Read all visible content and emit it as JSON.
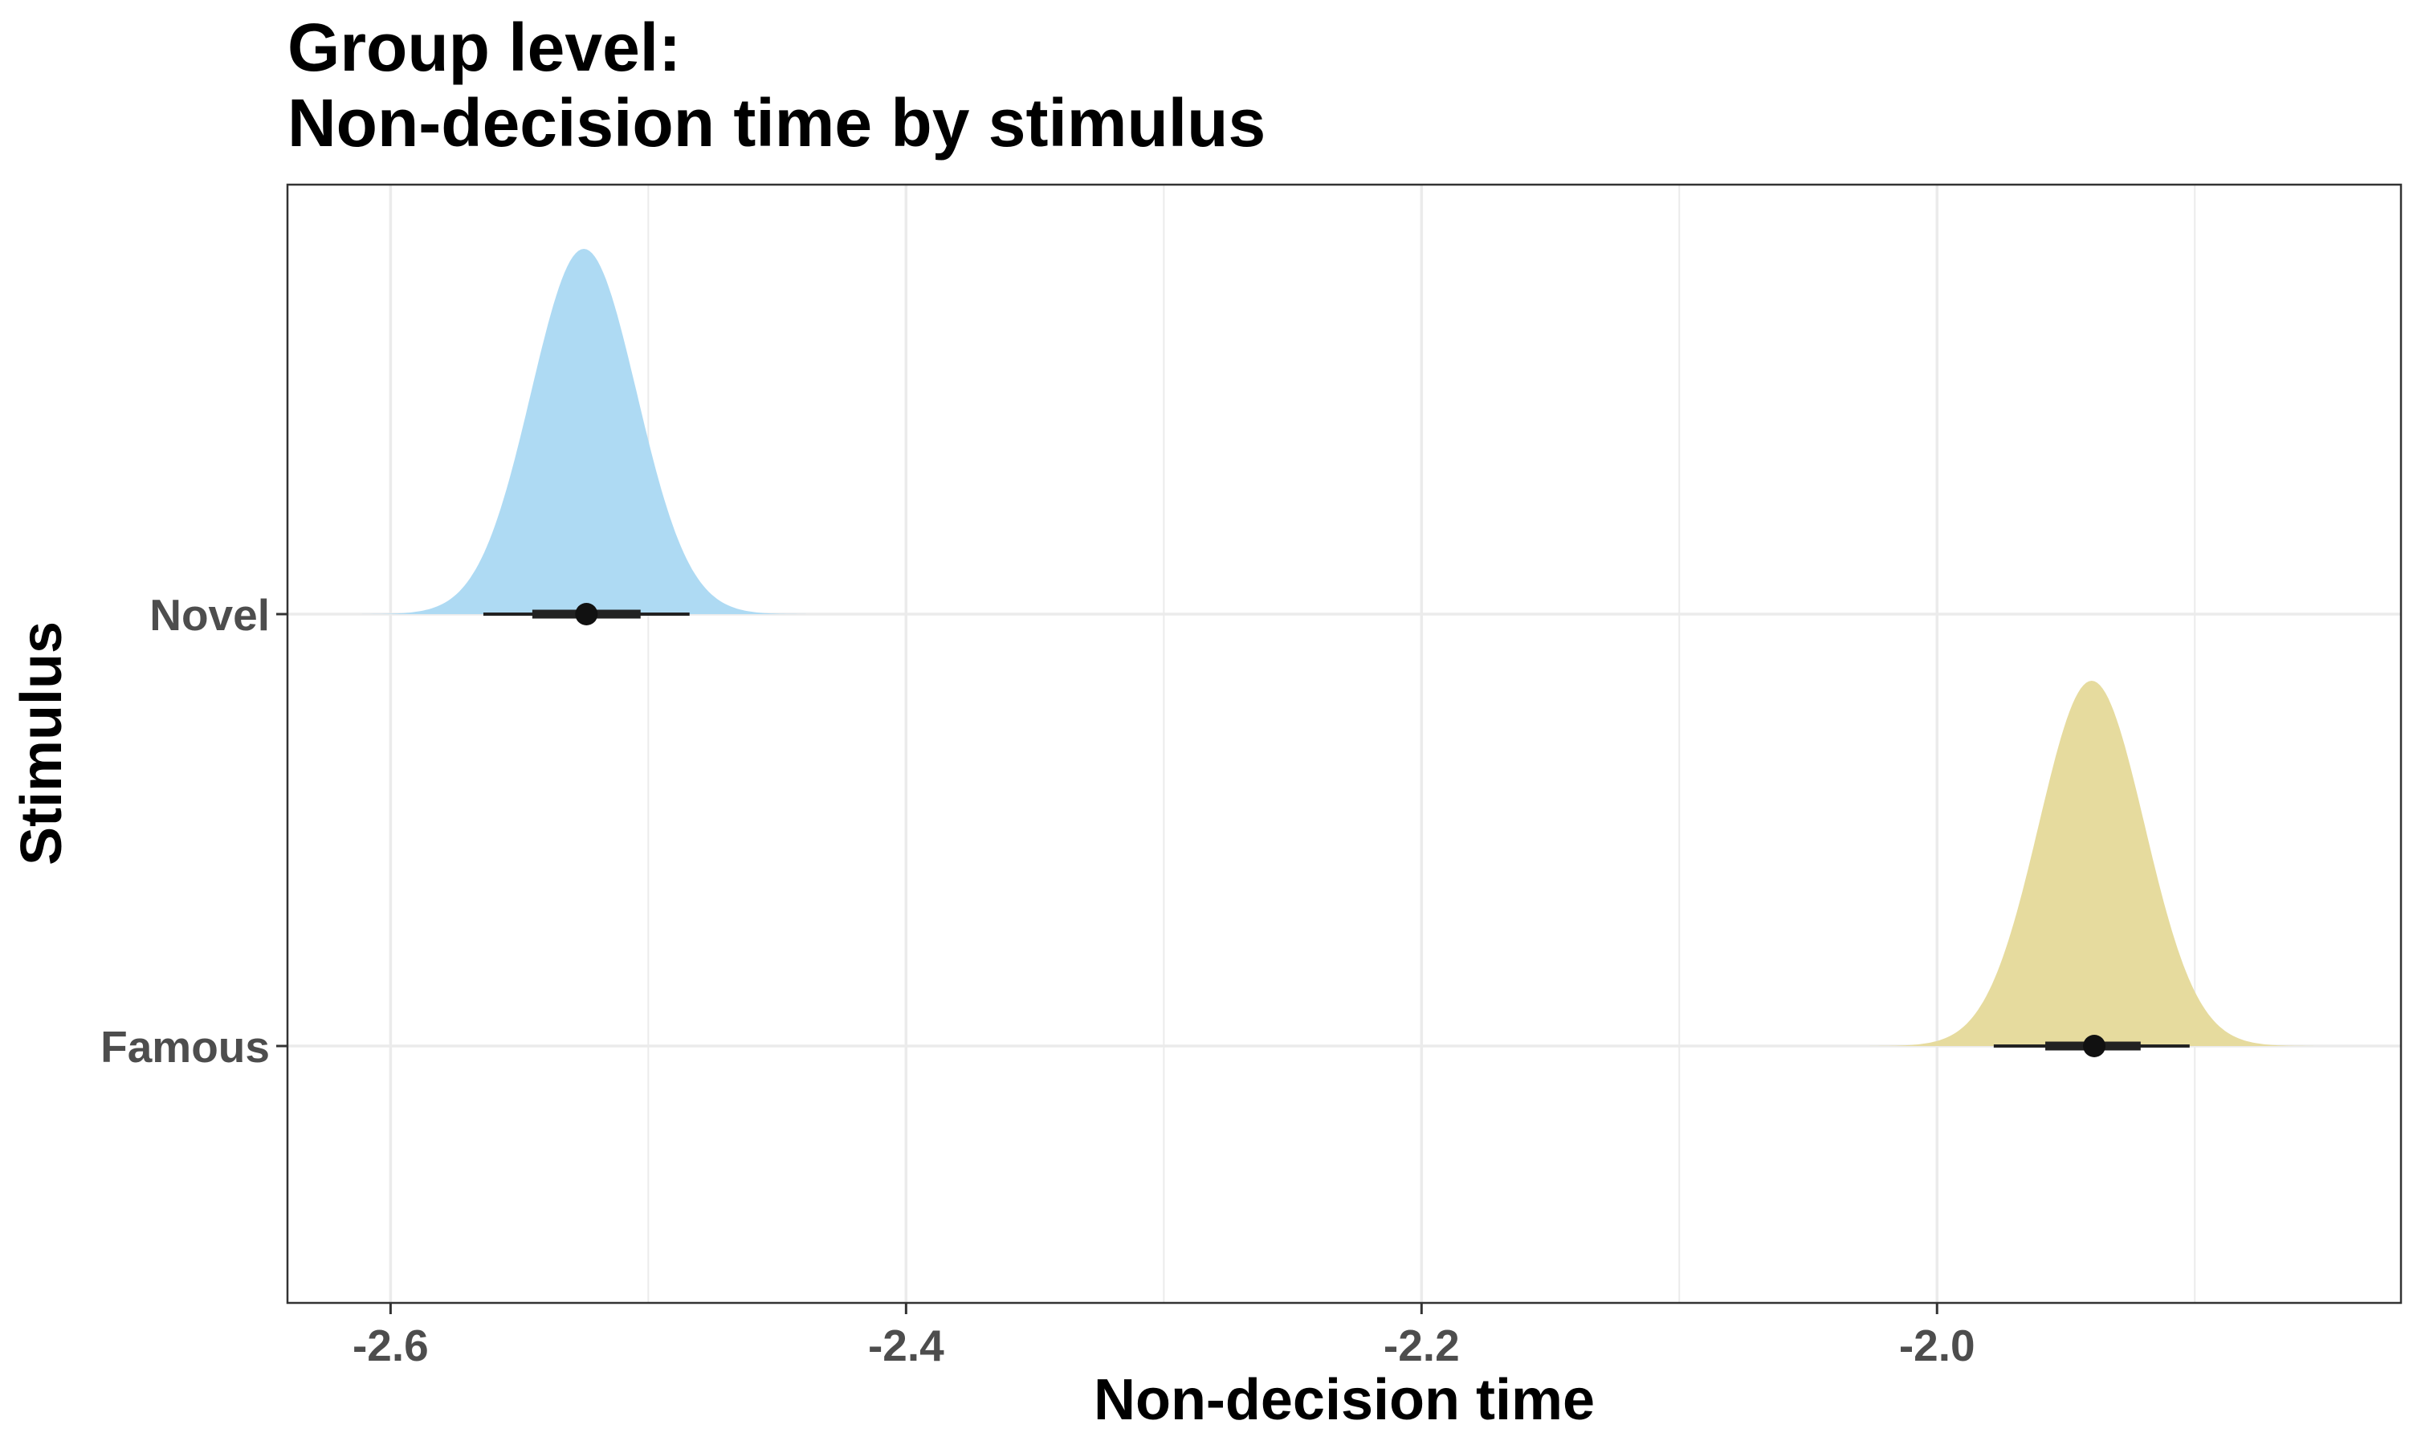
{
  "chart_data": {
    "type": "density",
    "title_lines": [
      "Group level:",
      "Non-decision time by stimulus"
    ],
    "xlabel": "Non-decision time",
    "ylabel": "Stimulus",
    "xlim": [
      -2.64,
      -1.82
    ],
    "x_ticks_major": [
      -2.6,
      -2.4,
      -2.2,
      -2.0
    ],
    "x_tick_labels": [
      "-2.6",
      "-2.4",
      "-2.2",
      "-2.0"
    ],
    "x_ticks_minor": [
      -2.5,
      -2.3,
      -2.1,
      -1.9
    ],
    "categories": [
      "Famous",
      "Novel"
    ],
    "grid": true,
    "legend": "none",
    "series": [
      {
        "category": "Novel",
        "color": "#aedaf3",
        "mean": -2.525,
        "sd": 0.0205,
        "point_estimate": -2.524,
        "interval_66": [
          -2.545,
          -2.503
        ],
        "interval_95": [
          -2.564,
          -2.484
        ]
      },
      {
        "category": "Famous",
        "color": "#e6db9e",
        "mean": -1.94,
        "sd": 0.0205,
        "point_estimate": -1.939,
        "interval_66": [
          -1.958,
          -1.921
        ],
        "interval_95": [
          -1.978,
          -1.902
        ]
      }
    ]
  },
  "colors": {
    "panel_border": "#333333",
    "grid": "#ebebeb",
    "tick_text": "#4d4d4d",
    "interval": "#222222"
  }
}
